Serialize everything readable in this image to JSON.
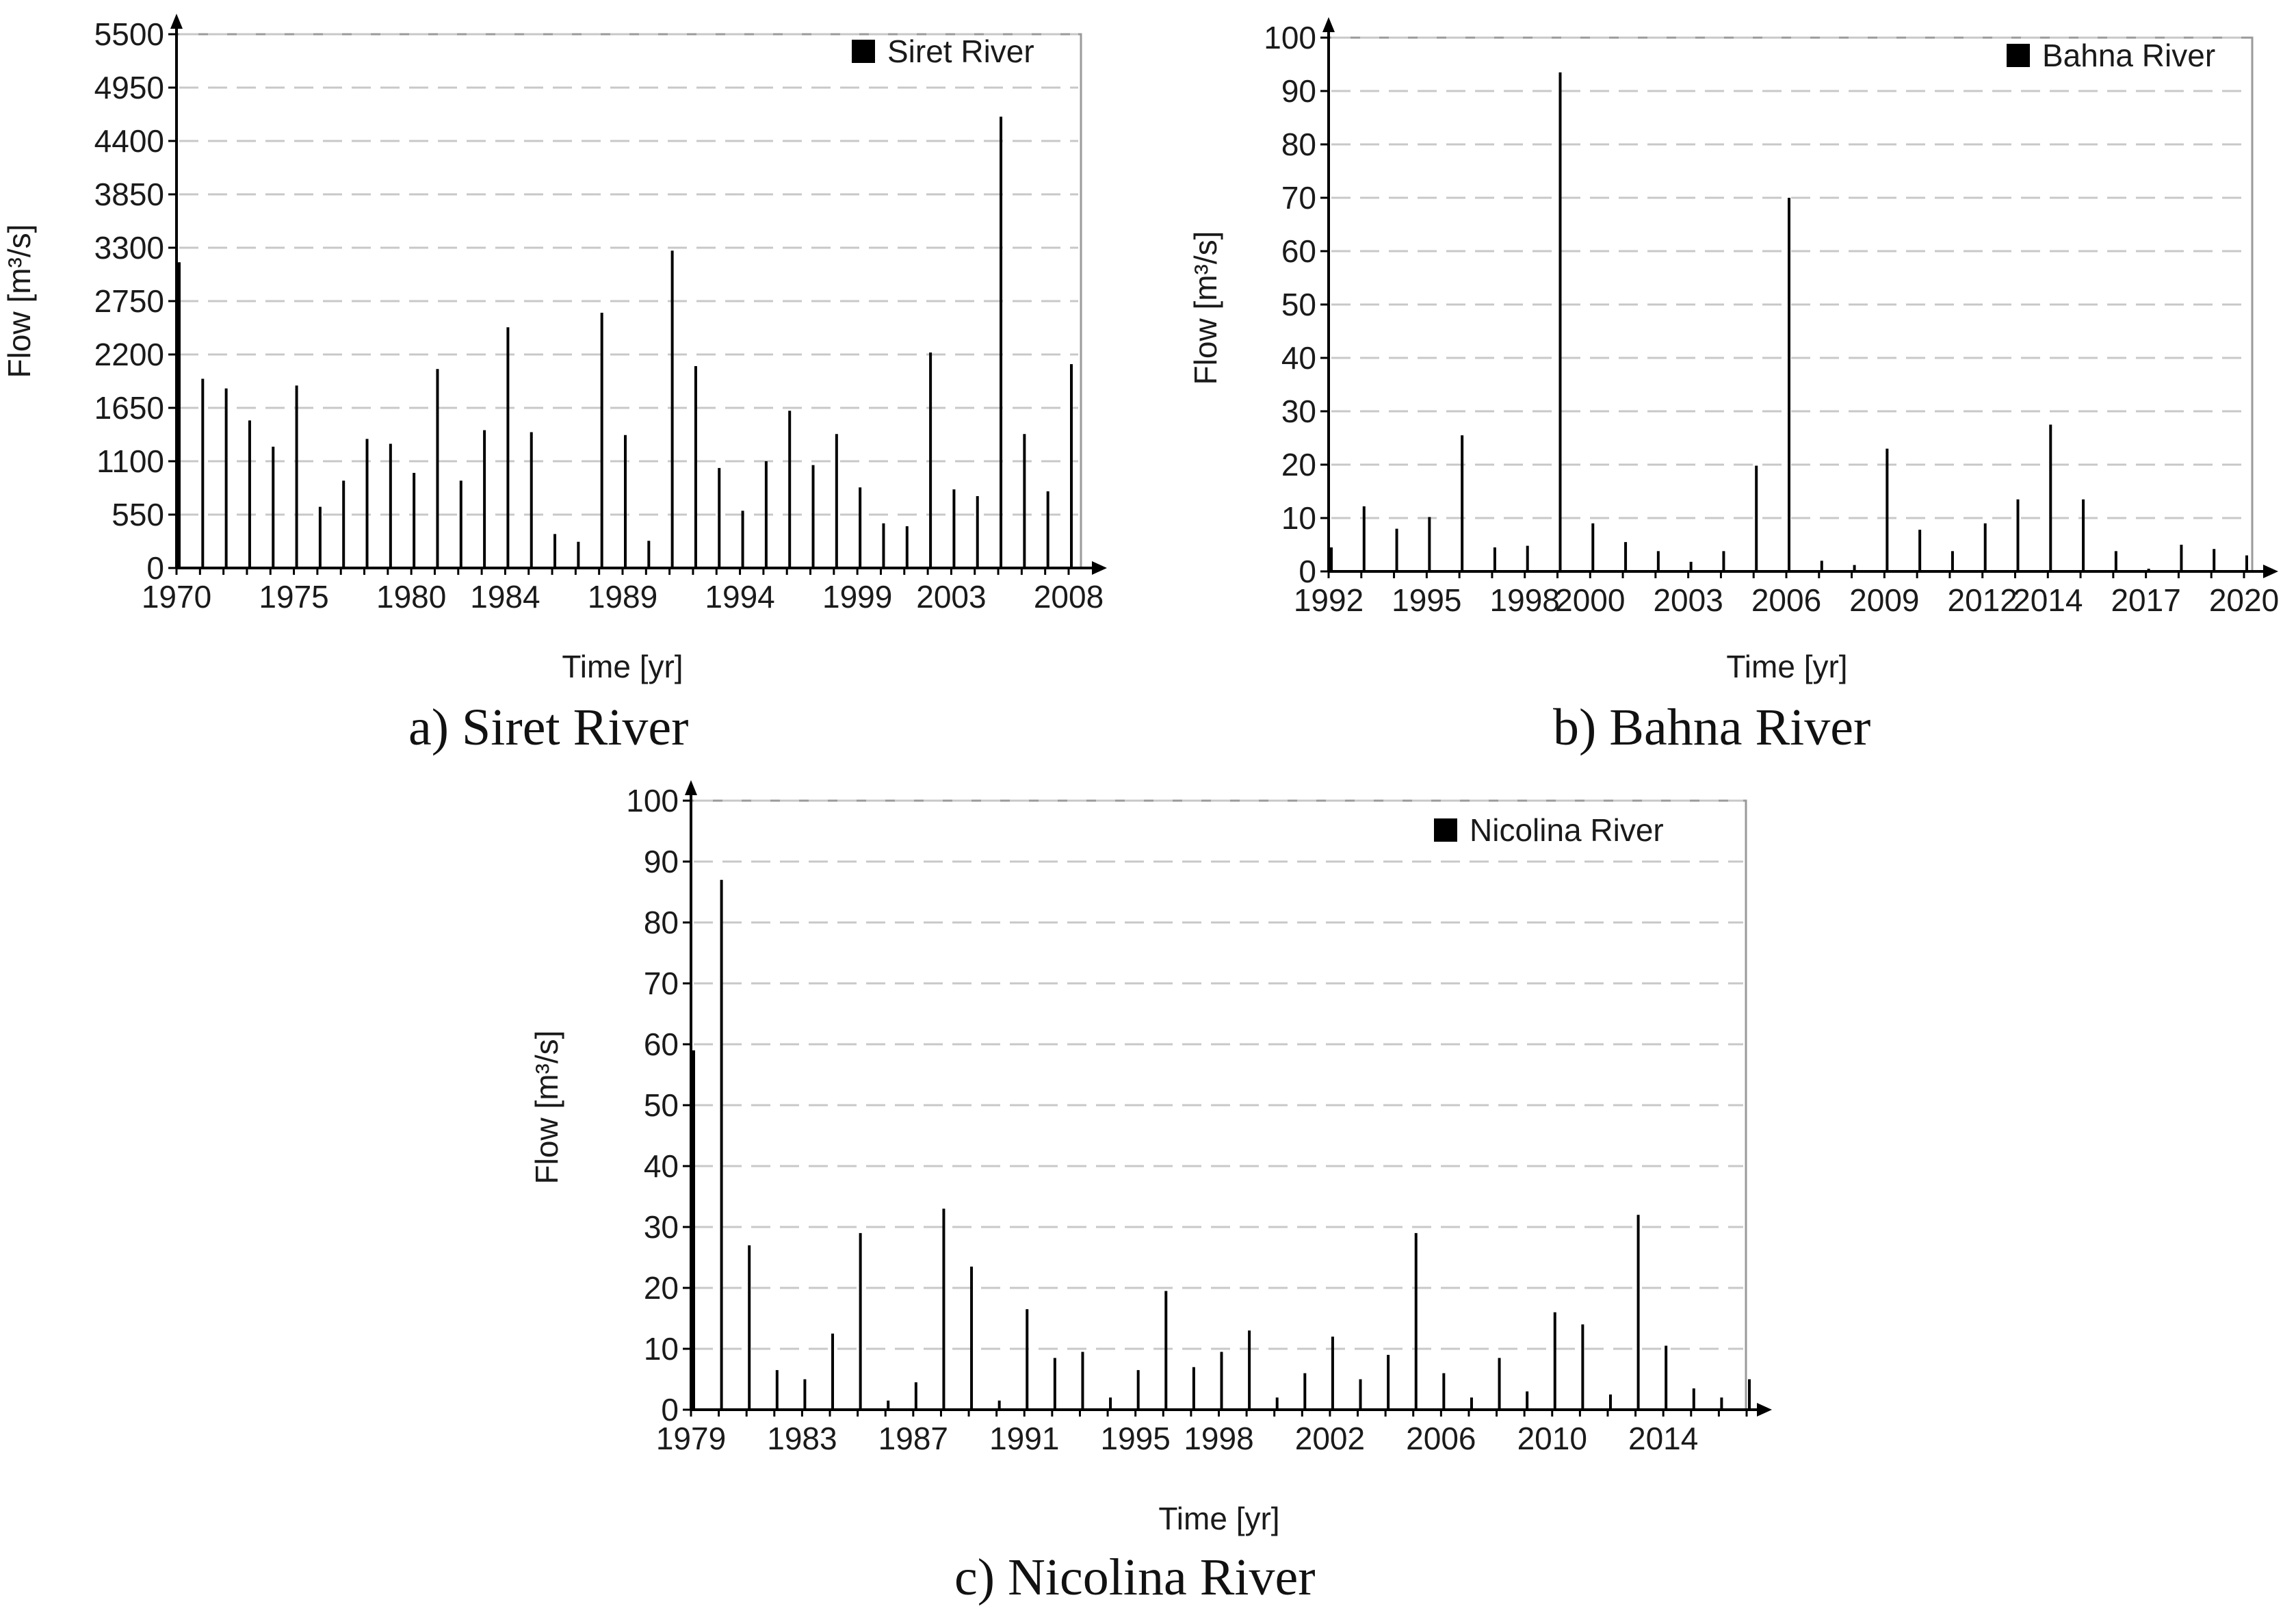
{
  "captions": {
    "a": "a) Siret River",
    "b": "b) Bahna River",
    "c": "c) Nicolina River"
  },
  "colors": {
    "bar": "#000000",
    "grid": "#c8c8c8",
    "frame": "#9a9a9a",
    "axis": "#000000"
  },
  "chart_data": [
    {
      "type": "bar",
      "title": "",
      "legend": "Siret River",
      "legend_position": "top-right",
      "xlabel": "Time [yr]",
      "ylabel": "Flow [m³/s]",
      "ylim": [
        0,
        5500
      ],
      "yticks": [
        0,
        550,
        1100,
        1650,
        2200,
        2750,
        3300,
        3850,
        4400,
        4950,
        5500
      ],
      "xlim": [
        1970,
        2008
      ],
      "xticks": [
        "1970",
        "1975",
        "1980",
        "1984",
        "1989",
        "1994",
        "1999",
        "2003",
        "2008"
      ],
      "x": [
        1970,
        1971,
        1972,
        1973,
        1974,
        1975,
        1976,
        1977,
        1978,
        1979,
        1980,
        1981,
        1982,
        1983,
        1984,
        1985,
        1986,
        1987,
        1988,
        1989,
        1990,
        1991,
        1992,
        1993,
        1994,
        1995,
        1996,
        1997,
        1998,
        1999,
        2000,
        2001,
        2002,
        2003,
        2004,
        2005,
        2006,
        2007,
        2008
      ],
      "values": [
        3150,
        1950,
        1850,
        1520,
        1250,
        1880,
        630,
        900,
        1330,
        1280,
        980,
        2050,
        900,
        1420,
        2480,
        1400,
        350,
        270,
        2630,
        1370,
        280,
        3270,
        2080,
        1030,
        590,
        1100,
        1620,
        1060,
        1380,
        830,
        460,
        430,
        2220,
        810,
        740,
        4650,
        1380,
        790,
        2100
      ]
    },
    {
      "type": "bar",
      "title": "",
      "legend": "Bahna River",
      "legend_position": "top-right",
      "xlabel": "Time [yr]",
      "ylabel": "Flow [m³/s]",
      "ylim": [
        0,
        100
      ],
      "yticks": [
        0,
        10,
        20,
        30,
        40,
        50,
        60,
        70,
        80,
        90,
        100
      ],
      "xlim": [
        1992,
        2020
      ],
      "xticks": [
        "1992",
        "1995",
        "1998",
        "2000",
        "2003",
        "2006",
        "2009",
        "2012",
        "2014",
        "2017",
        "2020"
      ],
      "x": [
        1992,
        1993,
        1994,
        1995,
        1996,
        1997,
        1998,
        1999,
        2000,
        2001,
        2002,
        2003,
        2004,
        2005,
        2006,
        2007,
        2008,
        2009,
        2010,
        2011,
        2012,
        2013,
        2014,
        2015,
        2016,
        2017,
        2018,
        2019,
        2020
      ],
      "values": [
        4.5,
        12.2,
        8.0,
        10.2,
        25.5,
        4.5,
        4.8,
        93.5,
        9.0,
        5.5,
        3.8,
        1.8,
        3.8,
        19.8,
        70.0,
        2.0,
        1.2,
        23.0,
        7.8,
        3.8,
        9.0,
        13.5,
        27.5,
        13.5,
        3.8,
        0.5,
        5.0,
        4.2,
        3.0
      ]
    },
    {
      "type": "bar",
      "title": "",
      "legend": "Nicolina River",
      "legend_position": "top-right",
      "xlabel": "Time [yr]",
      "ylabel": "Flow [m³/s]",
      "ylim": [
        0,
        100
      ],
      "yticks": [
        0,
        10,
        20,
        30,
        40,
        50,
        60,
        70,
        80,
        90,
        100
      ],
      "xlim": [
        1979,
        2017
      ],
      "xticks": [
        "1979",
        "1983",
        "1987",
        "1991",
        "1995",
        "1998",
        "2002",
        "2006",
        "2010",
        "2014"
      ],
      "x": [
        1979,
        1980,
        1981,
        1982,
        1983,
        1984,
        1985,
        1986,
        1987,
        1988,
        1989,
        1990,
        1991,
        1992,
        1993,
        1994,
        1995,
        1996,
        1997,
        1998,
        1999,
        2000,
        2001,
        2002,
        2003,
        2004,
        2005,
        2006,
        2007,
        2008,
        2009,
        2010,
        2011,
        2012,
        2013,
        2014,
        2015,
        2016,
        2017
      ],
      "values": [
        59,
        87,
        27,
        6.5,
        5,
        12.5,
        29,
        1.5,
        4.5,
        33,
        23.5,
        1.5,
        16.5,
        8.5,
        9.5,
        2,
        6.5,
        19.5,
        7,
        9.5,
        13,
        2,
        6,
        12,
        5,
        9,
        29,
        6,
        2,
        8.5,
        3,
        16,
        14,
        2.5,
        32,
        10.5,
        3.5,
        2,
        5
      ]
    }
  ]
}
